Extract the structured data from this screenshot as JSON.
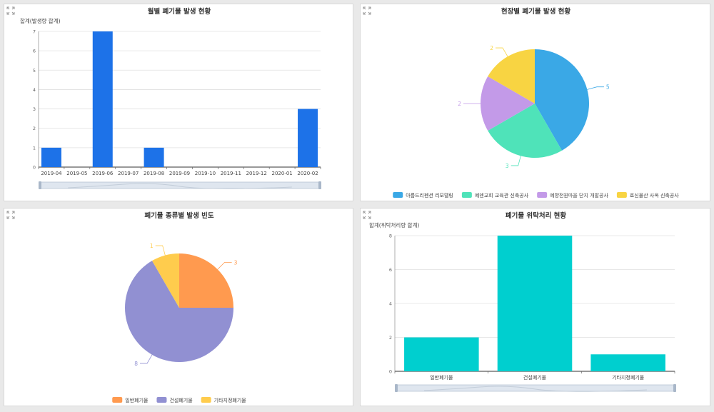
{
  "colors": {
    "bar_blue": "#1d72e8",
    "bar_teal": "#00cfcf",
    "grid": "#e0e0e0",
    "axis": "#333333"
  },
  "icons": {
    "expand": "expand-icon"
  },
  "chart_data": [
    {
      "type": "bar",
      "title": "월별 폐기물 발생 현황",
      "ylabel": "합계(발생량 합계)",
      "xlabel": "",
      "categories": [
        "2019-04",
        "2019-05",
        "2019-06",
        "2019-07",
        "2019-08",
        "2019-09",
        "2019-10",
        "2019-11",
        "2019-12",
        "2020-01",
        "2020-02"
      ],
      "values": [
        1,
        0,
        7,
        0,
        1,
        0,
        0,
        0,
        0,
        0,
        3
      ],
      "ylim": [
        0,
        7
      ],
      "yticks": [
        "0",
        "1",
        "2",
        "3",
        "4",
        "5",
        "6",
        "7"
      ],
      "grid": true,
      "color": "#1d72e8",
      "has_slider": true
    },
    {
      "type": "pie",
      "title": "현장별 폐기물 발생 현황",
      "series": [
        {
          "name": "아름드리펜션 리모델링",
          "value": 5,
          "color": "#3aa8e6"
        },
        {
          "name": "예덴교회 교육관 신축공사",
          "value": 3,
          "color": "#4fe3b9"
        },
        {
          "name": "예향전원마을 단지 개발공사",
          "value": 2,
          "color": "#c39ae8"
        },
        {
          "name": "효신물산 사옥 신축공사",
          "value": 2,
          "color": "#f8d442"
        }
      ],
      "legend": "bottom"
    },
    {
      "type": "pie",
      "title": "폐기물 종류별 발생 빈도",
      "series": [
        {
          "name": "일반폐기물",
          "value": 3,
          "color": "#ff9a4f"
        },
        {
          "name": "건설폐기물",
          "value": 8,
          "color": "#9190d2"
        },
        {
          "name": "기타지정폐기물",
          "value": 1,
          "color": "#ffcc4d"
        }
      ],
      "legend": "bottom"
    },
    {
      "type": "bar",
      "title": "폐기물 위탁처리 현황",
      "ylabel": "합계(위탁처리량 합계)",
      "xlabel": "",
      "categories": [
        "일반폐기물",
        "건설폐기물",
        "기타지정폐기물"
      ],
      "values": [
        2,
        8,
        1
      ],
      "ylim": [
        0,
        8
      ],
      "yticks": [
        "0",
        "2",
        "4",
        "6",
        "8"
      ],
      "grid": true,
      "color": "#00cfcf",
      "has_slider": true
    }
  ]
}
